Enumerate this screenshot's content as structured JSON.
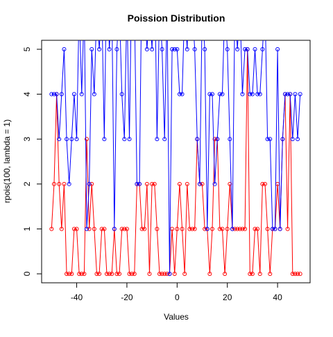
{
  "chart_data": {
    "type": "line",
    "title": "Poission Distribution",
    "x_label": "Values",
    "y_label": "rpois(100, lambda = 1)",
    "x": [
      -50,
      -49,
      -48,
      -47,
      -46,
      -45,
      -44,
      -43,
      -42,
      -41,
      -40,
      -39,
      -38,
      -37,
      -36,
      -35,
      -34,
      -33,
      -32,
      -31,
      -30,
      -29,
      -28,
      -27,
      -26,
      -25,
      -24,
      -23,
      -22,
      -21,
      -20,
      -19,
      -18,
      -17,
      -16,
      -15,
      -14,
      -13,
      -12,
      -11,
      -10,
      -9,
      -8,
      -7,
      -6,
      -5,
      -4,
      -3,
      -2,
      -1,
      0,
      1,
      2,
      3,
      4,
      5,
      6,
      7,
      8,
      9,
      10,
      11,
      12,
      13,
      14,
      15,
      16,
      17,
      18,
      19,
      20,
      21,
      22,
      23,
      24,
      25,
      26,
      27,
      28,
      29,
      30,
      31,
      32,
      33,
      34,
      35,
      36,
      37,
      38,
      39,
      40,
      41,
      42,
      43,
      44,
      45,
      46,
      47,
      48,
      49
    ],
    "series": [
      {
        "color": "#ff0000",
        "values": [
          1,
          2,
          4,
          2,
          1,
          2,
          0,
          0,
          0,
          1,
          1,
          0,
          0,
          0,
          3,
          1,
          2,
          1,
          0,
          0,
          1,
          1,
          0,
          0,
          0,
          1,
          0,
          0,
          1,
          1,
          1,
          0,
          0,
          0,
          2,
          2,
          1,
          1,
          2,
          0,
          2,
          2,
          1,
          0,
          0,
          0,
          0,
          0,
          1,
          0,
          1,
          2,
          1,
          0,
          2,
          1,
          1,
          1,
          3,
          2,
          2,
          1,
          1,
          0,
          1,
          3,
          3,
          1,
          1,
          0,
          1,
          2,
          1,
          1,
          1,
          1,
          1,
          1,
          5,
          0,
          0,
          1,
          1,
          0,
          2,
          2,
          1,
          0,
          1,
          1,
          2,
          1,
          3,
          4,
          1,
          4,
          0,
          0,
          0,
          0
        ]
      },
      {
        "color": "#0000ff",
        "values": [
          4,
          4,
          4,
          3,
          4,
          5,
          3,
          2,
          3,
          4,
          3,
          6,
          4,
          6,
          1,
          2,
          5,
          4,
          6,
          5,
          6,
          3,
          7,
          5,
          6,
          1,
          5,
          6,
          4,
          3,
          6,
          3,
          7,
          6,
          2,
          2,
          7,
          6,
          5,
          6,
          5,
          7,
          3,
          6,
          5,
          3,
          6,
          0,
          5,
          5,
          5,
          4,
          4,
          6,
          5,
          7,
          6,
          5,
          3,
          2,
          6,
          5,
          1,
          4,
          4,
          2,
          3,
          4,
          4,
          6,
          5,
          3,
          1,
          6,
          5,
          6,
          4,
          5,
          5,
          4,
          4,
          5,
          4,
          4,
          5,
          6,
          3,
          3,
          1,
          1,
          5,
          1,
          3,
          4,
          4,
          4,
          3,
          4,
          3,
          4
        ]
      }
    ],
    "xlim": [
      -53.96,
      52.96
    ],
    "ylim": [
      -0.2,
      5.2
    ],
    "xticks": [
      -40,
      -20,
      0,
      20,
      40
    ],
    "yticks": [
      0,
      1,
      2,
      3,
      4,
      5
    ]
  }
}
